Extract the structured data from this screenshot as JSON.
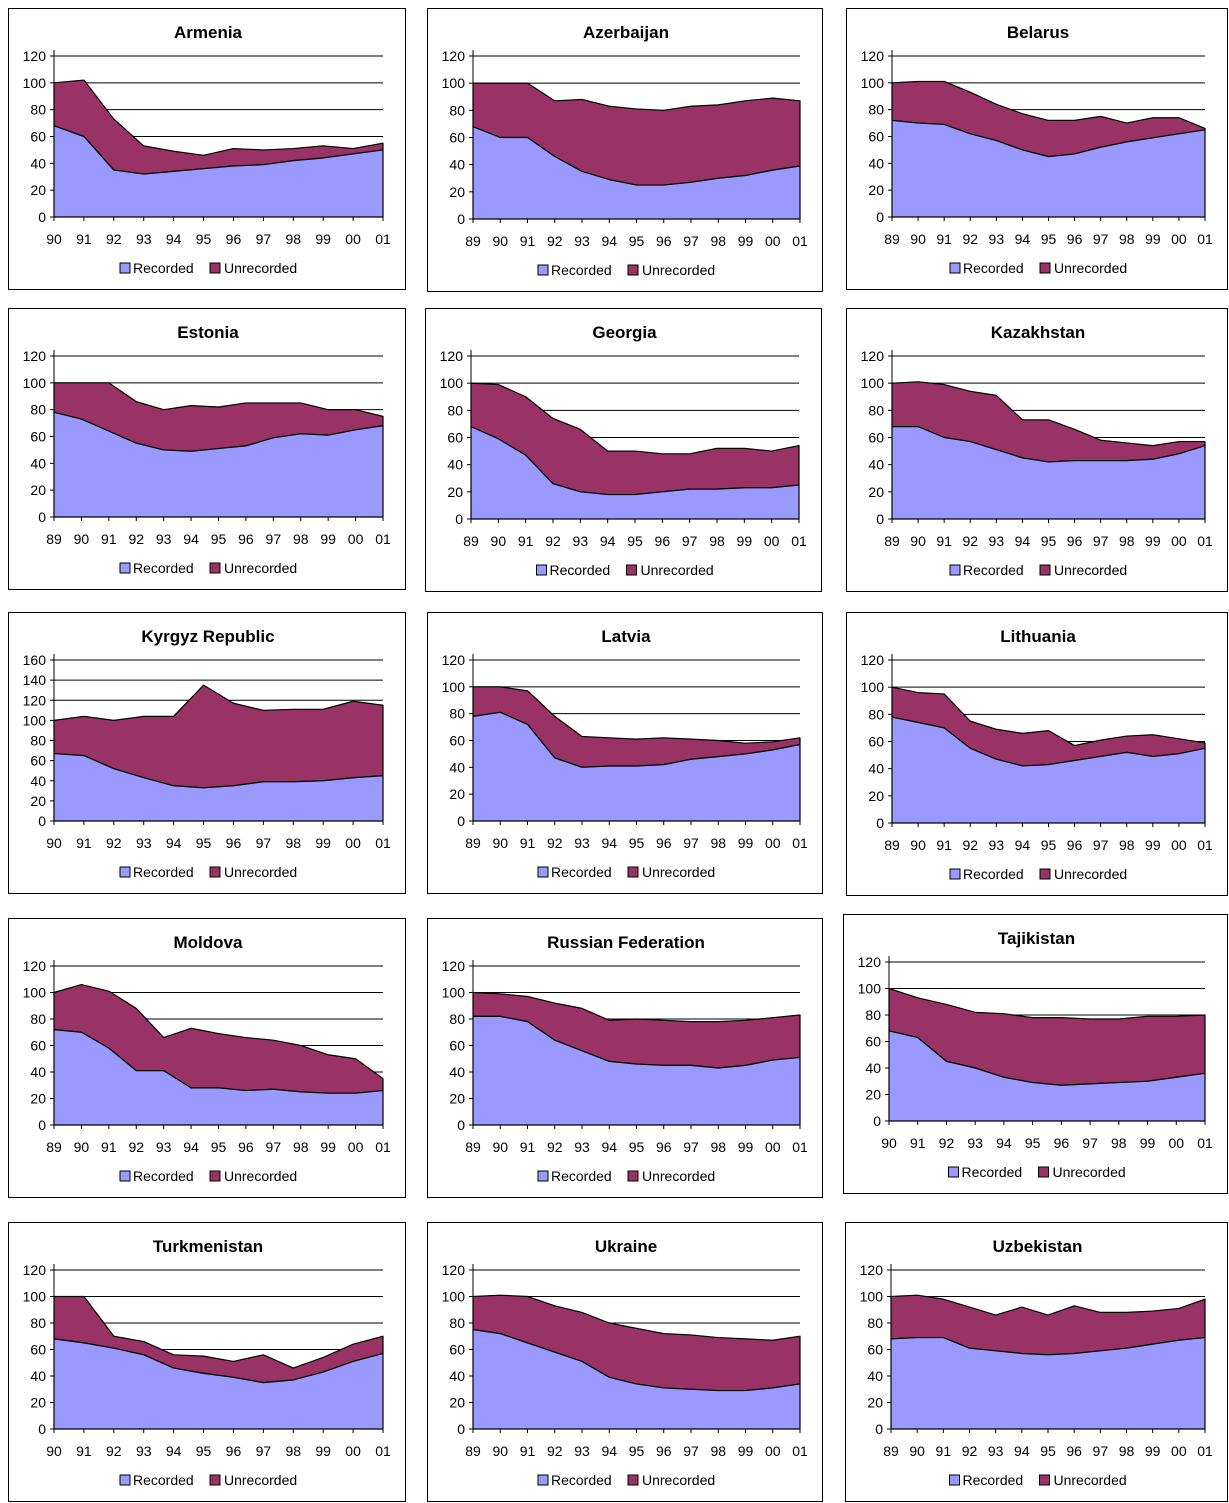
{
  "colors": {
    "recorded": "#9999ff",
    "unrecorded": "#993366",
    "grid": "#000000",
    "border": "#000000"
  },
  "legend": {
    "recorded": "Recorded",
    "unrecorded": "Unrecorded"
  },
  "chart_data": [
    {
      "type": "area",
      "title": "Armenia",
      "stacked": true,
      "ylim": [
        0,
        120
      ],
      "yticks": [
        0,
        20,
        40,
        60,
        80,
        100,
        120
      ],
      "x": [
        "90",
        "91",
        "92",
        "93",
        "94",
        "95",
        "96",
        "97",
        "98",
        "99",
        "00",
        "01"
      ],
      "series": [
        {
          "name": "Recorded",
          "values": [
            68,
            60,
            35,
            32,
            34,
            36,
            38,
            39,
            42,
            44,
            47,
            50
          ]
        },
        {
          "name": "Unrecorded",
          "values": [
            32,
            42,
            38,
            21,
            15,
            10,
            13,
            11,
            9,
            9,
            4,
            5
          ]
        }
      ]
    },
    {
      "type": "area",
      "title": "Azerbaijan",
      "stacked": true,
      "ylim": [
        0,
        120
      ],
      "yticks": [
        0,
        20,
        40,
        60,
        80,
        100,
        120
      ],
      "x": [
        "89",
        "90",
        "91",
        "92",
        "93",
        "94",
        "95",
        "96",
        "97",
        "98",
        "99",
        "00",
        "01"
      ],
      "series": [
        {
          "name": "Recorded",
          "values": [
            68,
            60,
            60,
            46,
            35,
            29,
            25,
            25,
            27,
            30,
            32,
            36,
            39
          ]
        },
        {
          "name": "Unrecorded",
          "values": [
            32,
            40,
            40,
            41,
            53,
            54,
            56,
            55,
            56,
            54,
            55,
            53,
            48
          ]
        }
      ]
    },
    {
      "type": "area",
      "title": "Belarus",
      "stacked": true,
      "ylim": [
        0,
        120
      ],
      "yticks": [
        0,
        20,
        40,
        60,
        80,
        100,
        120
      ],
      "x": [
        "89",
        "90",
        "91",
        "92",
        "93",
        "94",
        "95",
        "96",
        "97",
        "98",
        "99",
        "00",
        "01"
      ],
      "series": [
        {
          "name": "Recorded",
          "values": [
            72,
            70,
            69,
            62,
            57,
            50,
            45,
            47,
            52,
            56,
            59,
            62,
            65
          ]
        },
        {
          "name": "Unrecorded",
          "values": [
            28,
            31,
            32,
            31,
            27,
            27,
            27,
            25,
            23,
            14,
            15,
            12,
            1
          ]
        }
      ]
    },
    {
      "type": "area",
      "title": "Estonia",
      "stacked": true,
      "ylim": [
        0,
        120
      ],
      "yticks": [
        0,
        20,
        40,
        60,
        80,
        100,
        120
      ],
      "x": [
        "89",
        "90",
        "91",
        "92",
        "93",
        "94",
        "95",
        "96",
        "97",
        "98",
        "99",
        "00",
        "01"
      ],
      "series": [
        {
          "name": "Recorded",
          "values": [
            78,
            73,
            64,
            55,
            50,
            49,
            51,
            53,
            59,
            62,
            61,
            65,
            68
          ]
        },
        {
          "name": "Unrecorded",
          "values": [
            22,
            27,
            36,
            31,
            30,
            34,
            31,
            32,
            26,
            23,
            19,
            15,
            7
          ]
        }
      ]
    },
    {
      "type": "area",
      "title": "Georgia",
      "stacked": true,
      "ylim": [
        0,
        120
      ],
      "yticks": [
        0,
        20,
        40,
        60,
        80,
        100,
        120
      ],
      "x": [
        "89",
        "90",
        "91",
        "92",
        "93",
        "94",
        "95",
        "96",
        "97",
        "98",
        "99",
        "00",
        "01"
      ],
      "series": [
        {
          "name": "Recorded",
          "values": [
            68,
            59,
            47,
            26,
            20,
            18,
            18,
            20,
            22,
            22,
            23,
            23,
            25
          ]
        },
        {
          "name": "Unrecorded",
          "values": [
            32,
            40,
            43,
            48,
            46,
            32,
            32,
            28,
            26,
            30,
            29,
            27,
            29
          ]
        }
      ]
    },
    {
      "type": "area",
      "title": "Kazakhstan",
      "stacked": true,
      "ylim": [
        0,
        120
      ],
      "yticks": [
        0,
        20,
        40,
        60,
        80,
        100,
        120
      ],
      "x": [
        "89",
        "90",
        "91",
        "92",
        "93",
        "94",
        "95",
        "96",
        "97",
        "98",
        "99",
        "00",
        "01"
      ],
      "series": [
        {
          "name": "Recorded",
          "values": [
            68,
            68,
            60,
            57,
            51,
            45,
            42,
            43,
            43,
            43,
            44,
            48,
            54
          ]
        },
        {
          "name": "Unrecorded",
          "values": [
            32,
            33,
            39,
            37,
            40,
            28,
            31,
            23,
            15,
            13,
            10,
            9,
            3
          ]
        }
      ]
    },
    {
      "type": "area",
      "title": "Kyrgyz Republic",
      "stacked": true,
      "ylim": [
        0,
        160
      ],
      "yticks": [
        0,
        20,
        40,
        60,
        80,
        100,
        120,
        140,
        160
      ],
      "x": [
        "90",
        "91",
        "92",
        "93",
        "94",
        "95",
        "96",
        "97",
        "98",
        "99",
        "00",
        "01"
      ],
      "series": [
        {
          "name": "Recorded",
          "values": [
            67,
            65,
            52,
            43,
            35,
            33,
            35,
            39,
            39,
            40,
            43,
            45
          ]
        },
        {
          "name": "Unrecorded",
          "values": [
            33,
            39,
            48,
            61,
            69,
            102,
            82,
            71,
            72,
            71,
            76,
            70
          ]
        }
      ]
    },
    {
      "type": "area",
      "title": "Latvia",
      "stacked": true,
      "ylim": [
        0,
        120
      ],
      "yticks": [
        0,
        20,
        40,
        60,
        80,
        100,
        120
      ],
      "x": [
        "89",
        "90",
        "91",
        "92",
        "93",
        "94",
        "95",
        "96",
        "97",
        "98",
        "99",
        "00",
        "01"
      ],
      "series": [
        {
          "name": "Recorded",
          "values": [
            78,
            81,
            72,
            47,
            40,
            41,
            41,
            42,
            46,
            48,
            50,
            53,
            57
          ]
        },
        {
          "name": "Unrecorded",
          "values": [
            22,
            19,
            25,
            31,
            23,
            21,
            20,
            20,
            15,
            12,
            8,
            6,
            5
          ]
        }
      ]
    },
    {
      "type": "area",
      "title": "Lithuania",
      "stacked": true,
      "ylim": [
        0,
        120
      ],
      "yticks": [
        0,
        20,
        40,
        60,
        80,
        100,
        120
      ],
      "x": [
        "89",
        "90",
        "91",
        "92",
        "93",
        "94",
        "95",
        "96",
        "97",
        "98",
        "99",
        "00",
        "01"
      ],
      "series": [
        {
          "name": "Recorded",
          "values": [
            78,
            74,
            70,
            55,
            47,
            42,
            43,
            46,
            49,
            52,
            49,
            51,
            55
          ]
        },
        {
          "name": "Unrecorded",
          "values": [
            22,
            22,
            25,
            20,
            22,
            24,
            25,
            11,
            12,
            12,
            16,
            11,
            4
          ]
        }
      ]
    },
    {
      "type": "area",
      "title": "Moldova",
      "stacked": true,
      "ylim": [
        0,
        120
      ],
      "yticks": [
        0,
        20,
        40,
        60,
        80,
        100,
        120
      ],
      "x": [
        "89",
        "90",
        "91",
        "92",
        "93",
        "94",
        "95",
        "96",
        "97",
        "98",
        "99",
        "00",
        "01"
      ],
      "series": [
        {
          "name": "Recorded",
          "values": [
            72,
            70,
            58,
            41,
            41,
            28,
            28,
            26,
            27,
            25,
            24,
            24,
            26
          ]
        },
        {
          "name": "Unrecorded",
          "values": [
            28,
            36,
            43,
            47,
            25,
            45,
            41,
            40,
            37,
            35,
            29,
            26,
            9
          ]
        }
      ]
    },
    {
      "type": "area",
      "title": "Russian Federation",
      "stacked": true,
      "ylim": [
        0,
        120
      ],
      "yticks": [
        0,
        20,
        40,
        60,
        80,
        100,
        120
      ],
      "x": [
        "89",
        "90",
        "91",
        "92",
        "93",
        "94",
        "95",
        "96",
        "97",
        "98",
        "99",
        "00",
        "01"
      ],
      "series": [
        {
          "name": "Recorded",
          "values": [
            82,
            82,
            78,
            64,
            56,
            48,
            46,
            45,
            45,
            43,
            45,
            49,
            51
          ]
        },
        {
          "name": "Unrecorded",
          "values": [
            18,
            17,
            19,
            28,
            32,
            31,
            34,
            34,
            33,
            35,
            34,
            32,
            32
          ]
        }
      ]
    },
    {
      "type": "area",
      "title": "Tajikistan",
      "stacked": true,
      "ylim": [
        0,
        120
      ],
      "yticks": [
        0,
        20,
        40,
        60,
        80,
        100,
        120
      ],
      "x": [
        "90",
        "91",
        "92",
        "93",
        "94",
        "95",
        "96",
        "97",
        "98",
        "99",
        "00",
        "01"
      ],
      "series": [
        {
          "name": "Recorded",
          "values": [
            68,
            63,
            45,
            40,
            33,
            29,
            27,
            28,
            29,
            30,
            33,
            36
          ]
        },
        {
          "name": "Unrecorded",
          "values": [
            32,
            30,
            43,
            42,
            48,
            49,
            51,
            49,
            48,
            49,
            46,
            44
          ]
        }
      ]
    },
    {
      "type": "area",
      "title": "Turkmenistan",
      "stacked": true,
      "ylim": [
        0,
        120
      ],
      "yticks": [
        0,
        20,
        40,
        60,
        80,
        100,
        120
      ],
      "x": [
        "90",
        "91",
        "92",
        "93",
        "94",
        "95",
        "96",
        "97",
        "98",
        "99",
        "00",
        "01"
      ],
      "series": [
        {
          "name": "Recorded",
          "values": [
            68,
            65,
            61,
            56,
            46,
            42,
            39,
            35,
            37,
            43,
            51,
            57
          ]
        },
        {
          "name": "Unrecorded",
          "values": [
            32,
            35,
            9,
            10,
            10,
            13,
            12,
            21,
            9,
            11,
            13,
            13
          ]
        }
      ]
    },
    {
      "type": "area",
      "title": "Ukraine",
      "stacked": true,
      "ylim": [
        0,
        120
      ],
      "yticks": [
        0,
        20,
        40,
        60,
        80,
        100,
        120
      ],
      "x": [
        "89",
        "90",
        "91",
        "92",
        "93",
        "94",
        "95",
        "96",
        "97",
        "98",
        "99",
        "00",
        "01"
      ],
      "series": [
        {
          "name": "Recorded",
          "values": [
            75,
            72,
            65,
            58,
            51,
            39,
            34,
            31,
            30,
            29,
            29,
            31,
            34
          ]
        },
        {
          "name": "Unrecorded",
          "values": [
            25,
            29,
            35,
            35,
            37,
            41,
            42,
            41,
            41,
            40,
            39,
            36,
            36
          ]
        }
      ]
    },
    {
      "type": "area",
      "title": "Uzbekistan",
      "stacked": true,
      "ylim": [
        0,
        120
      ],
      "yticks": [
        0,
        20,
        40,
        60,
        80,
        100,
        120
      ],
      "x": [
        "89",
        "90",
        "91",
        "92",
        "93",
        "94",
        "95",
        "96",
        "97",
        "98",
        "99",
        "00",
        "01"
      ],
      "series": [
        {
          "name": "Recorded",
          "values": [
            68,
            69,
            69,
            61,
            59,
            57,
            56,
            57,
            59,
            61,
            64,
            67,
            69
          ]
        },
        {
          "name": "Unrecorded",
          "values": [
            32,
            32,
            29,
            31,
            27,
            35,
            30,
            36,
            29,
            27,
            25,
            24,
            29
          ]
        }
      ]
    }
  ]
}
